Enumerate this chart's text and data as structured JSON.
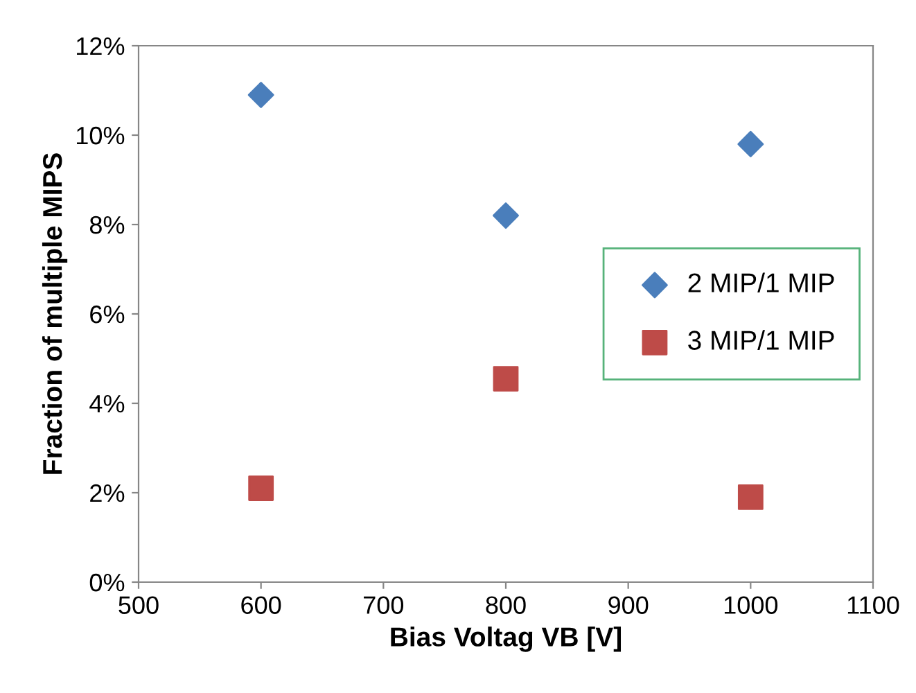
{
  "chart_data": {
    "type": "scatter",
    "xlabel": "Bias Voltag VB [V]",
    "ylabel": "Fraction of multiple MIPS",
    "xlim": [
      500,
      1100
    ],
    "xticks": [
      500,
      600,
      700,
      800,
      900,
      1000,
      1100
    ],
    "ylim": [
      0,
      12
    ],
    "yticks": [
      {
        "value": 0,
        "label": "0%"
      },
      {
        "value": 2,
        "label": "2%"
      },
      {
        "value": 4,
        "label": "4%"
      },
      {
        "value": 6,
        "label": "6%"
      },
      {
        "value": 8,
        "label": "8%"
      },
      {
        "value": 10,
        "label": "10%"
      },
      {
        "value": 12,
        "label": "12%"
      }
    ],
    "grid": false,
    "legend": "right",
    "series": [
      {
        "name": "2 MIP/1 MIP",
        "color": "#4a7ebb",
        "marker": "diamond",
        "x": [
          600,
          800,
          1000
        ],
        "values": [
          10.9,
          8.2,
          9.8
        ]
      },
      {
        "name": "3 MIP/1 MIP",
        "color": "#be4b48",
        "marker": "square",
        "x": [
          600,
          800,
          1000
        ],
        "values": [
          2.1,
          4.55,
          1.9
        ]
      }
    ]
  }
}
